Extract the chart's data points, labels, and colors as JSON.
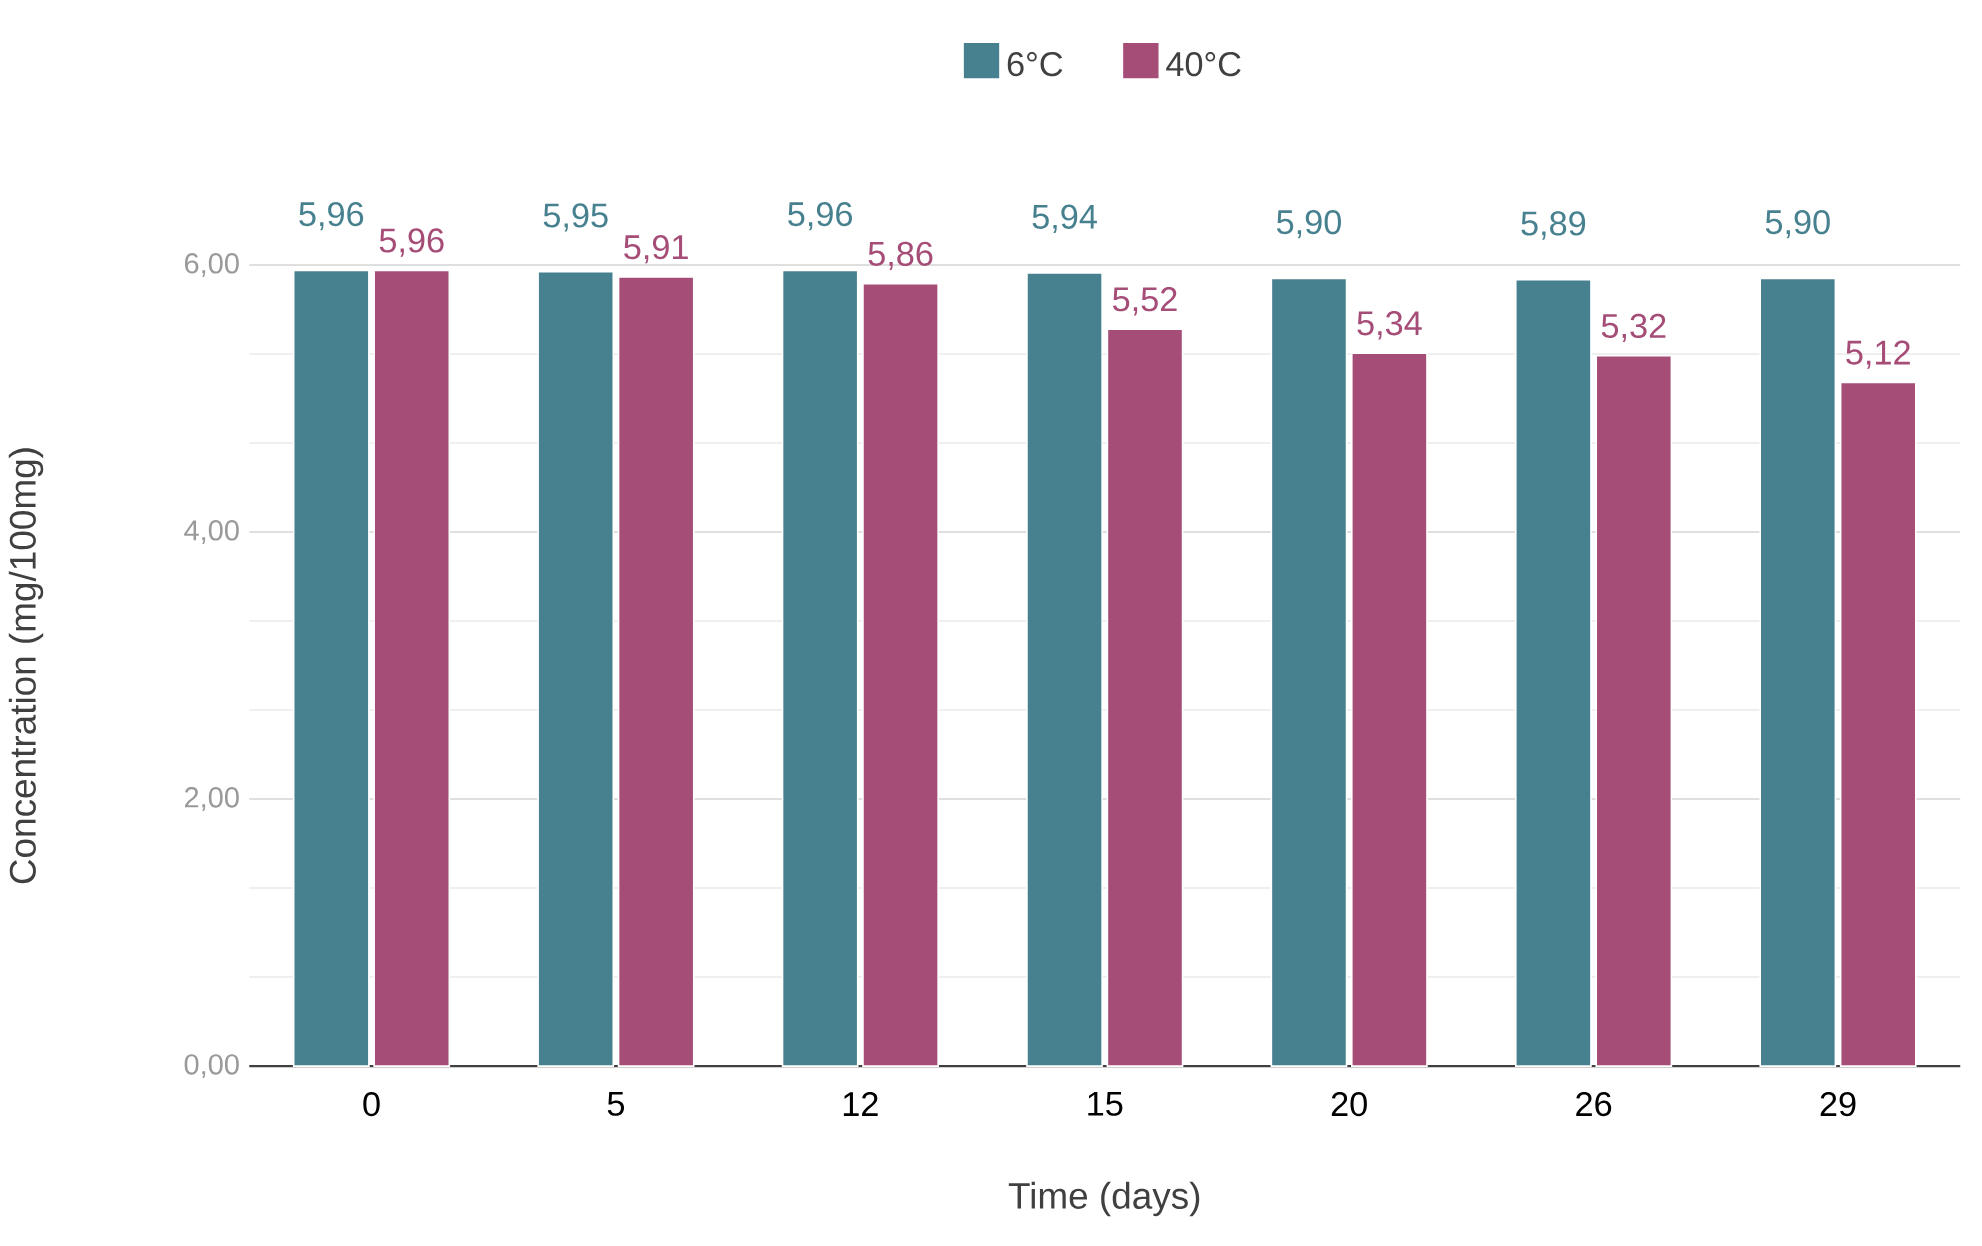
{
  "chart_data": {
    "type": "bar",
    "xlabel": "Time (days)",
    "ylabel": "Concentration (mg/100mg)",
    "categories": [
      "0",
      "5",
      "12",
      "15",
      "20",
      "26",
      "29"
    ],
    "series": [
      {
        "name": "6°C",
        "color": "#47808e",
        "values": [
          5.96,
          5.95,
          5.96,
          5.94,
          5.9,
          5.89,
          5.9
        ],
        "value_labels": [
          "5,96",
          "5,95",
          "5,96",
          "5,94",
          "5,90",
          "5,89",
          "5,90"
        ]
      },
      {
        "name": "40°C",
        "color": "#a54c77",
        "values": [
          5.96,
          5.91,
          5.86,
          5.52,
          5.34,
          5.32,
          5.12
        ],
        "value_labels": [
          "5,96",
          "5,91",
          "5,86",
          "5,52",
          "5,34",
          "5,32",
          "5,12"
        ]
      }
    ],
    "ylim": [
      0,
      6
    ],
    "yticks": [
      {
        "value": 0,
        "label": "0,00"
      },
      {
        "value": 2,
        "label": "2,00"
      },
      {
        "value": 4,
        "label": "4,00"
      },
      {
        "value": 6,
        "label": "6,00"
      }
    ],
    "grid": "y",
    "legend": "top"
  }
}
